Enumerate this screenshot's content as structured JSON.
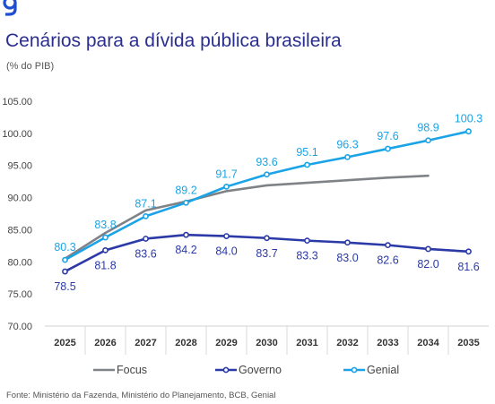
{
  "header": {
    "title": "Cenários para a dívida pública brasileira",
    "unit": "(% do PIB)"
  },
  "footer": {
    "source": "Fonte: Ministério da Fazenda, Ministério do Planejamento, BCB, Genial"
  },
  "colors": {
    "focus": "#7f8287",
    "governo": "#2b3aa6",
    "genial": "#1aa3e6",
    "brand": "#2a2f8f"
  },
  "chart_data": {
    "type": "line",
    "title": "Cenários para a dívida pública brasileira",
    "ylabel": "(% do PIB)",
    "xlabel": "",
    "x": [
      "2025",
      "2026",
      "2027",
      "2028",
      "2029",
      "2030",
      "2031",
      "2032",
      "2033",
      "2034",
      "2035"
    ],
    "ylim": [
      70,
      105
    ],
    "yticks": [
      "70.00",
      "75.00",
      "80.00",
      "85.00",
      "90.00",
      "95.00",
      "100.00",
      "105.00"
    ],
    "grid": false,
    "legend": "bottom",
    "series": [
      {
        "name": "Focus",
        "values": [
          80.5,
          84.5,
          88.0,
          89.4,
          91.0,
          91.9,
          92.3,
          92.7,
          93.1,
          93.4,
          null
        ],
        "labels": [],
        "marker": "none"
      },
      {
        "name": "Governo",
        "values": [
          78.5,
          81.8,
          83.6,
          84.2,
          84.0,
          83.7,
          83.3,
          83.0,
          82.6,
          82.0,
          81.6
        ],
        "labels": [
          "78.5",
          "81.8",
          "83.6",
          "84.2",
          "84.0",
          "83.7",
          "83.3",
          "83.0",
          "82.6",
          "82.0",
          "81.6"
        ],
        "marker": "circle",
        "label_position": "below"
      },
      {
        "name": "Genial",
        "values": [
          80.3,
          83.8,
          87.1,
          89.2,
          91.7,
          93.6,
          95.1,
          96.3,
          97.6,
          98.9,
          100.3
        ],
        "labels": [
          "80.3",
          "83.8",
          "87.1",
          "89.2",
          "91.7",
          "93.6",
          "95.1",
          "96.3",
          "97.6",
          "98.9",
          "100.3"
        ],
        "marker": "circle",
        "label_position": "above"
      }
    ]
  }
}
